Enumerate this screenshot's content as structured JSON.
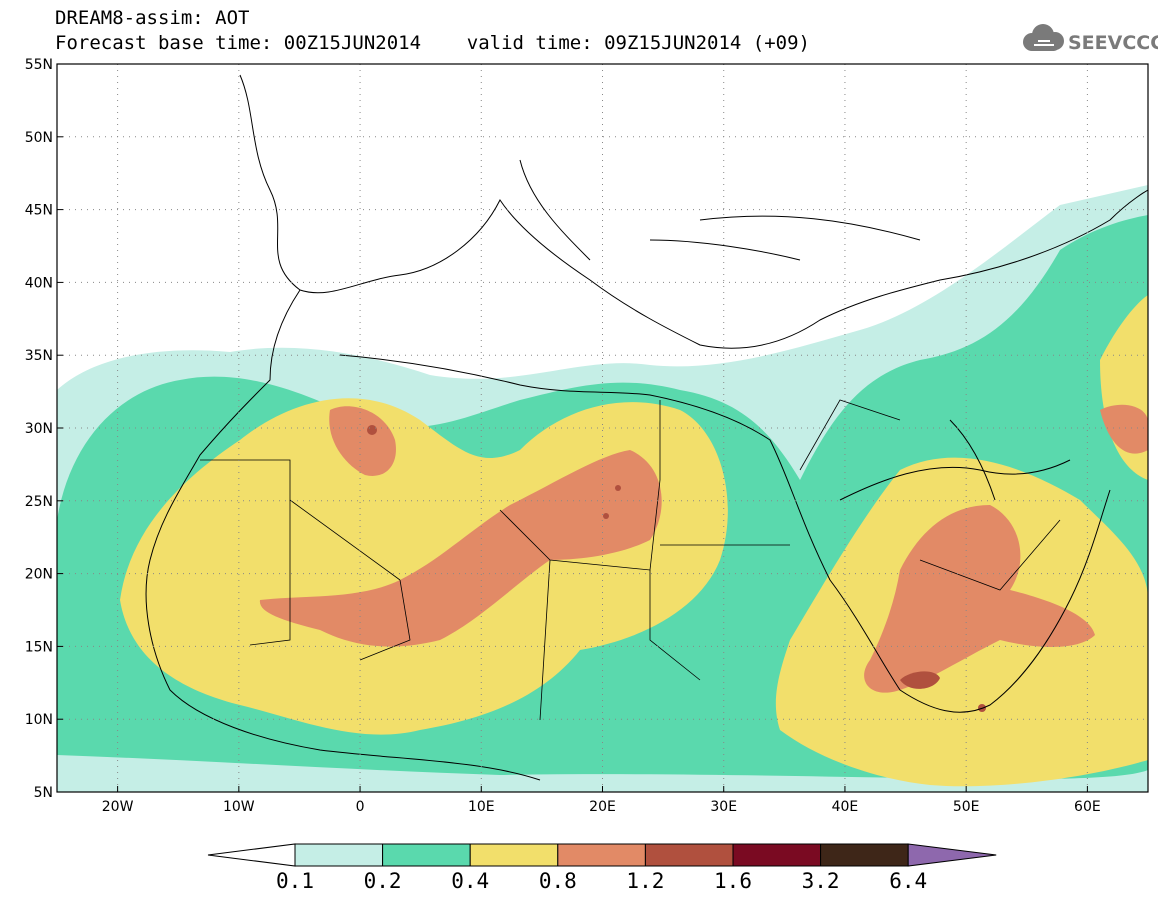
{
  "header": {
    "title_line1": "DREAM8-assim: AOT",
    "title_line2": "Forecast base time: 00Z15JUN2014    valid time: 09Z15JUN2014 (+09)"
  },
  "logo": {
    "text": "SEEVCCC",
    "icon": "cloud-icon"
  },
  "map": {
    "lon_range": [
      -25,
      65
    ],
    "lat_range": [
      5,
      55
    ],
    "lon_ticks": [
      "20W",
      "10W",
      "0",
      "10E",
      "20E",
      "30E",
      "40E",
      "50E",
      "60E"
    ],
    "lat_ticks": [
      "5N",
      "10N",
      "15N",
      "20N",
      "25N",
      "30N",
      "35N",
      "40N",
      "45N",
      "50N",
      "55N"
    ],
    "grid": "dotted"
  },
  "colorbar": {
    "labels": [
      "0.1",
      "0.2",
      "0.4",
      "0.8",
      "1.2",
      "1.6",
      "3.2",
      "6.4"
    ],
    "colors": [
      "#ffffff",
      "#c5eee6",
      "#5ad9ad",
      "#f2df6b",
      "#e28a66",
      "#b0503e",
      "#7a0a22",
      "#3e2618",
      "#8e68ad"
    ]
  }
}
